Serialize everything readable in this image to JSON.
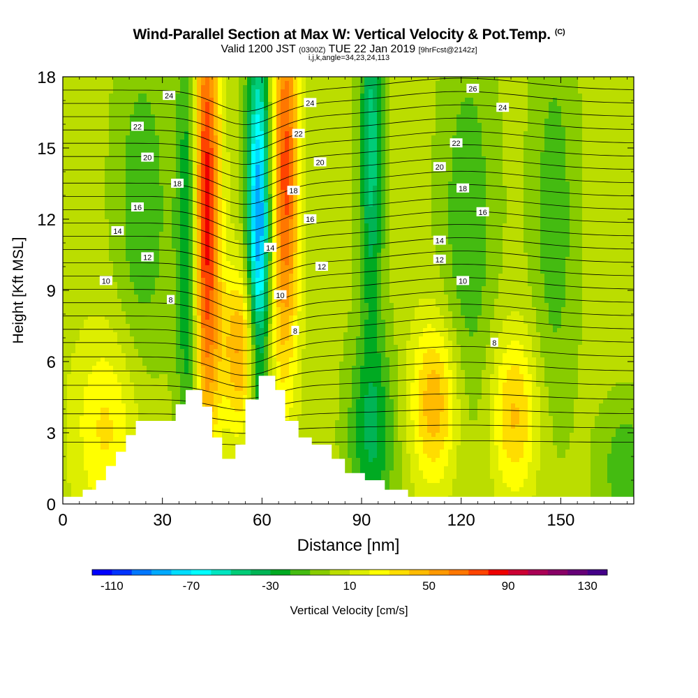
{
  "header": {
    "title": "Wind-Parallel Section at Max W: Vertical Velocity & Pot.Temp.",
    "title_mark": "(C)",
    "line2_a": "Valid 1200 JST",
    "line2_b": "(0300Z)",
    "line2_c": "TUE 22 Jan 2019",
    "line2_d": "[9hrFcst@2142z]",
    "line3": "i,j,k,angle=34,23,24,113"
  },
  "chart_data": {
    "type": "heatmap",
    "xlabel": "Distance [nm]",
    "ylabel": "Height [Kft MSL]",
    "xlim": [
      0,
      172
    ],
    "ylim": [
      0,
      18
    ],
    "xticks": [
      0,
      30,
      60,
      90,
      120,
      150
    ],
    "yticks": [
      0,
      3,
      6,
      9,
      12,
      15,
      18
    ],
    "colorbar": {
      "label": "Vertical Velocity [cm/s]",
      "tick_values": [
        -110,
        -70,
        -30,
        10,
        50,
        90,
        130
      ],
      "tick_labels": [
        "-110",
        "-70",
        "-30",
        "10",
        "50",
        "90",
        "130"
      ],
      "bounds": [
        -120,
        140
      ],
      "colors": [
        "#0000ff",
        "#0033ff",
        "#0077ff",
        "#00aaff",
        "#00ddff",
        "#00ffff",
        "#00e5c0",
        "#00cc77",
        "#00b455",
        "#00aa22",
        "#44bb11",
        "#88cc00",
        "#bbdd00",
        "#ddee00",
        "#ffff00",
        "#ffdd00",
        "#ffbb00",
        "#ff9900",
        "#ff7700",
        "#ff4400",
        "#ee0000",
        "#cc0033",
        "#aa0055",
        "#880066",
        "#660077",
        "#440088"
      ]
    },
    "terrain": [
      {
        "x": 0,
        "h": 0.3
      },
      {
        "x": 6,
        "h": 0.6
      },
      {
        "x": 10,
        "h": 1.0
      },
      {
        "x": 13,
        "h": 1.6
      },
      {
        "x": 16,
        "h": 2.2
      },
      {
        "x": 19,
        "h": 2.9
      },
      {
        "x": 22,
        "h": 3.5
      },
      {
        "x": 34,
        "h": 4.2
      },
      {
        "x": 37,
        "h": 4.8
      },
      {
        "x": 42,
        "h": 4.1
      },
      {
        "x": 45,
        "h": 2.8
      },
      {
        "x": 48,
        "h": 1.9
      },
      {
        "x": 52,
        "h": 2.5
      },
      {
        "x": 55,
        "h": 4.4
      },
      {
        "x": 59,
        "h": 5.4
      },
      {
        "x": 64,
        "h": 4.8
      },
      {
        "x": 67,
        "h": 3.5
      },
      {
        "x": 71,
        "h": 2.8
      },
      {
        "x": 75,
        "h": 2.5
      },
      {
        "x": 81,
        "h": 1.9
      },
      {
        "x": 85,
        "h": 1.3
      },
      {
        "x": 91,
        "h": 1.0
      },
      {
        "x": 97,
        "h": 0.6
      },
      {
        "x": 104,
        "h": 0.3
      },
      {
        "x": 172,
        "h": 0.3
      }
    ],
    "w_features": [
      {
        "x": 13,
        "z": 3.2,
        "w": 28,
        "sx": 7,
        "sz": 3
      },
      {
        "x": 24,
        "z": 12.5,
        "w": -22,
        "sx": 6,
        "sz": 5
      },
      {
        "x": 38,
        "z": 11.0,
        "w": -45,
        "sx": 2.5,
        "sz": 7
      },
      {
        "x": 43,
        "z": 12.5,
        "w": 85,
        "sx": 3,
        "sz": 7
      },
      {
        "x": 55,
        "z": 6.5,
        "w": 55,
        "sx": 5,
        "sz": 2.5
      },
      {
        "x": 59,
        "z": 11.0,
        "w": -100,
        "sx": 2.5,
        "sz": 6
      },
      {
        "x": 67,
        "z": 14.0,
        "w": 70,
        "sx": 3,
        "sz": 6
      },
      {
        "x": 93,
        "z": 3.0,
        "w": -35,
        "sx": 5,
        "sz": 3
      },
      {
        "x": 93,
        "z": 15.0,
        "w": -50,
        "sx": 2.5,
        "sz": 5
      },
      {
        "x": 112,
        "z": 4.3,
        "w": 45,
        "sx": 5,
        "sz": 2.5
      },
      {
        "x": 122,
        "z": 11.5,
        "w": -22,
        "sx": 6,
        "sz": 6
      },
      {
        "x": 136,
        "z": 3.8,
        "w": 38,
        "sx": 5,
        "sz": 2.5
      },
      {
        "x": 148,
        "z": 12.0,
        "w": -20,
        "sx": 5,
        "sz": 6
      },
      {
        "x": 170,
        "z": 1.5,
        "w": -22,
        "sx": 6,
        "sz": 2
      }
    ],
    "theta_labels": [
      {
        "text": "24",
        "x": 32,
        "z": 17.2
      },
      {
        "text": "22",
        "x": 22.5,
        "z": 15.9
      },
      {
        "text": "20",
        "x": 25.5,
        "z": 14.6
      },
      {
        "text": "18",
        "x": 34.5,
        "z": 13.5
      },
      {
        "text": "16",
        "x": 22.5,
        "z": 12.5
      },
      {
        "text": "14",
        "x": 16.5,
        "z": 11.5
      },
      {
        "text": "12",
        "x": 25.5,
        "z": 10.4
      },
      {
        "text": "10",
        "x": 13,
        "z": 9.4
      },
      {
        "text": "8",
        "x": 32.5,
        "z": 8.6
      },
      {
        "text": "24",
        "x": 74.5,
        "z": 16.9
      },
      {
        "text": "22",
        "x": 71,
        "z": 15.6
      },
      {
        "text": "20",
        "x": 77.5,
        "z": 14.4
      },
      {
        "text": "18",
        "x": 69.5,
        "z": 13.2
      },
      {
        "text": "16",
        "x": 74.5,
        "z": 12.0
      },
      {
        "text": "14",
        "x": 62.5,
        "z": 10.8
      },
      {
        "text": "12",
        "x": 78,
        "z": 10.0
      },
      {
        "text": "10",
        "x": 65.5,
        "z": 8.8
      },
      {
        "text": "8",
        "x": 70,
        "z": 7.3
      },
      {
        "text": "26",
        "x": 123.5,
        "z": 17.5
      },
      {
        "text": "24",
        "x": 132.5,
        "z": 16.7
      },
      {
        "text": "22",
        "x": 118.5,
        "z": 15.2
      },
      {
        "text": "20",
        "x": 113.5,
        "z": 14.2
      },
      {
        "text": "18",
        "x": 120.5,
        "z": 13.3
      },
      {
        "text": "16",
        "x": 126.5,
        "z": 12.3
      },
      {
        "text": "14",
        "x": 113.5,
        "z": 11.1
      },
      {
        "text": "12",
        "x": 113.5,
        "z": 10.3
      },
      {
        "text": "10",
        "x": 120.5,
        "z": 9.4
      },
      {
        "text": "8",
        "x": 130,
        "z": 6.8
      }
    ]
  }
}
